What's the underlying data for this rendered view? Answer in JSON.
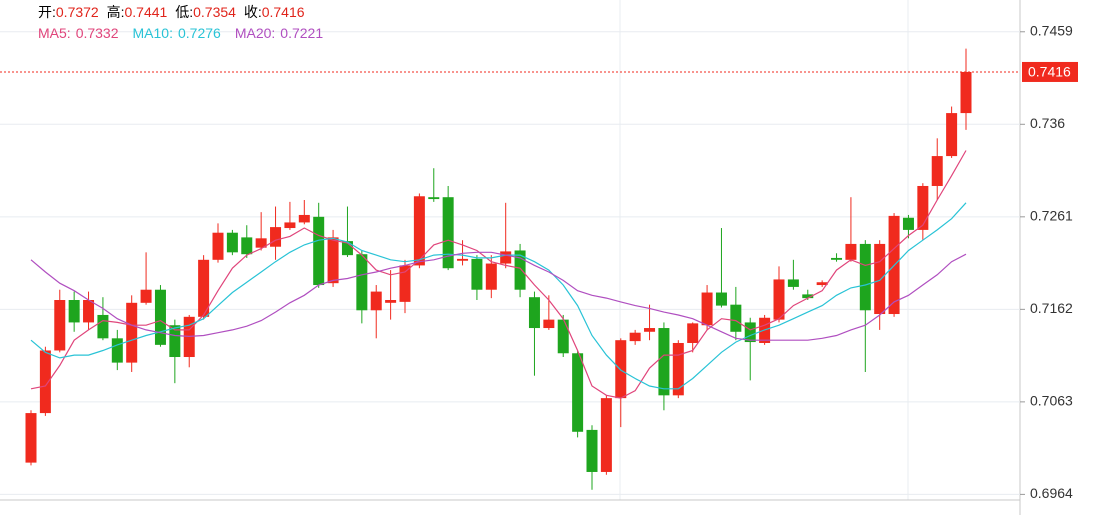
{
  "chart_data": {
    "type": "candlestick",
    "ohlc_labels": [
      "开:",
      "高:",
      "低:",
      "收:"
    ],
    "up_color": "#f02a1e",
    "down_color": "#1ea51e",
    "ylim": [
      0.6958,
      0.7493
    ],
    "yticks": [
      0.6964,
      0.7063,
      0.7162,
      0.7261,
      0.736,
      0.7459
    ],
    "grid": true,
    "open": [
      0.6998,
      0.7051,
      0.7118,
      0.7172,
      0.7148,
      0.7156,
      0.7131,
      0.7105,
      0.7169,
      0.7183,
      0.7145,
      0.7111,
      0.7154,
      0.7215,
      0.7244,
      0.7239,
      0.7228,
      0.7229,
      0.7249,
      0.7255,
      0.7261,
      0.719,
      0.7235,
      0.7221,
      0.7161,
      0.7169,
      0.717,
      0.7209,
      0.7282,
      0.7282,
      0.7214,
      0.7216,
      0.7183,
      0.7211,
      0.7225,
      0.7175,
      0.7142,
      0.7151,
      0.7115,
      0.7033,
      0.6988,
      0.7067,
      0.7128,
      0.7138,
      0.7142,
      0.707,
      0.7126,
      0.7145,
      0.718,
      0.7167,
      0.7148,
      0.7126,
      0.7151,
      0.7194,
      0.7178,
      0.7188,
      0.7217,
      0.7215,
      0.7232,
      0.7157,
      0.7157,
      0.726,
      0.7247,
      0.7294,
      0.7326,
      0.7372
    ],
    "high": [
      0.7054,
      0.7122,
      0.7183,
      0.7181,
      0.7181,
      0.7175,
      0.714,
      0.7177,
      0.7223,
      0.7188,
      0.7151,
      0.7156,
      0.722,
      0.7254,
      0.7247,
      0.7252,
      0.7266,
      0.7272,
      0.7277,
      0.7279,
      0.7276,
      0.7247,
      0.7272,
      0.7225,
      0.7188,
      0.7204,
      0.7215,
      0.7286,
      0.7313,
      0.7294,
      0.7236,
      0.722,
      0.722,
      0.7276,
      0.7232,
      0.7181,
      0.7177,
      0.7156,
      0.7118,
      0.7038,
      0.707,
      0.7131,
      0.714,
      0.7167,
      0.7148,
      0.7129,
      0.7148,
      0.7188,
      0.7249,
      0.7186,
      0.7153,
      0.7156,
      0.7208,
      0.7215,
      0.7183,
      0.7193,
      0.7222,
      0.7282,
      0.7236,
      0.7236,
      0.7265,
      0.7263,
      0.7297,
      0.7345,
      0.7379,
      0.7441
    ],
    "low": [
      0.6995,
      0.7048,
      0.7116,
      0.7138,
      0.714,
      0.7129,
      0.7097,
      0.7095,
      0.7167,
      0.7122,
      0.7083,
      0.71,
      0.7151,
      0.7212,
      0.722,
      0.7217,
      0.7225,
      0.7215,
      0.7247,
      0.7253,
      0.7185,
      0.7186,
      0.7218,
      0.7147,
      0.7131,
      0.7151,
      0.7158,
      0.7206,
      0.7277,
      0.7204,
      0.7209,
      0.7172,
      0.7174,
      0.7206,
      0.7175,
      0.7091,
      0.714,
      0.7111,
      0.7025,
      0.6969,
      0.6985,
      0.7036,
      0.7124,
      0.7129,
      0.7054,
      0.7067,
      0.7116,
      0.714,
      0.7164,
      0.7129,
      0.7086,
      0.7124,
      0.7148,
      0.7183,
      0.7172,
      0.7186,
      0.7213,
      0.7213,
      0.7095,
      0.714,
      0.7154,
      0.7238,
      0.7236,
      0.7279,
      0.7324,
      0.7354
    ],
    "close": [
      0.7051,
      0.7118,
      0.7172,
      0.7148,
      0.7172,
      0.7131,
      0.7105,
      0.7169,
      0.7183,
      0.7124,
      0.7111,
      0.7154,
      0.7215,
      0.7244,
      0.7223,
      0.7221,
      0.7238,
      0.725,
      0.7255,
      0.7263,
      0.7188,
      0.7239,
      0.722,
      0.7161,
      0.7181,
      0.7172,
      0.7209,
      0.7283,
      0.728,
      0.7206,
      0.7216,
      0.7183,
      0.7211,
      0.7224,
      0.7183,
      0.7142,
      0.7151,
      0.7115,
      0.7031,
      0.6988,
      0.7067,
      0.7129,
      0.7137,
      0.7142,
      0.707,
      0.7126,
      0.7147,
      0.718,
      0.7166,
      0.7138,
      0.7127,
      0.7153,
      0.7194,
      0.7186,
      0.7174,
      0.7191,
      0.7215,
      0.7232,
      0.7161,
      0.7232,
      0.7262,
      0.7247,
      0.7294,
      0.7326,
      0.7372,
      0.7416
    ],
    "series": [
      {
        "name": "MA5:",
        "color": "#e0457b",
        "values": [
          0.7077,
          0.708,
          0.7102,
          0.7129,
          0.714,
          0.715,
          0.7148,
          0.7145,
          0.7145,
          0.715,
          0.714,
          0.714,
          0.7156,
          0.7182,
          0.7206,
          0.722,
          0.7227,
          0.7236,
          0.724,
          0.7249,
          0.7241,
          0.7236,
          0.7233,
          0.722,
          0.7204,
          0.7199,
          0.7202,
          0.7215,
          0.7231,
          0.7236,
          0.7231,
          0.7225,
          0.7213,
          0.7209,
          0.7206,
          0.7188,
          0.7172,
          0.7152,
          0.7118,
          0.708,
          0.707,
          0.7067,
          0.7075,
          0.7099,
          0.7113,
          0.7113,
          0.7118,
          0.714,
          0.7152,
          0.715,
          0.714,
          0.7145,
          0.7152,
          0.7166,
          0.7174,
          0.7182,
          0.7204,
          0.7215,
          0.7209,
          0.7213,
          0.7227,
          0.7241,
          0.7252,
          0.7279,
          0.7305,
          0.7332
        ]
      },
      {
        "name": "MA10:",
        "color": "#29c3d6",
        "values": [
          0.7129,
          0.7116,
          0.711,
          0.7113,
          0.7113,
          0.7118,
          0.7124,
          0.7129,
          0.7134,
          0.7138,
          0.7142,
          0.7145,
          0.7152,
          0.7166,
          0.718,
          0.7191,
          0.7202,
          0.7213,
          0.7223,
          0.7231,
          0.7236,
          0.7238,
          0.7234,
          0.7225,
          0.722,
          0.7215,
          0.7213,
          0.7215,
          0.722,
          0.7221,
          0.722,
          0.7217,
          0.7217,
          0.722,
          0.722,
          0.7213,
          0.7204,
          0.7188,
          0.7166,
          0.7134,
          0.7113,
          0.7097,
          0.7088,
          0.708,
          0.7077,
          0.7077,
          0.7088,
          0.7102,
          0.7116,
          0.7127,
          0.7134,
          0.714,
          0.7145,
          0.7152,
          0.7159,
          0.7166,
          0.7177,
          0.7185,
          0.7188,
          0.7193,
          0.7209,
          0.7225,
          0.7236,
          0.7247,
          0.7259,
          0.7276
        ]
      },
      {
        "name": "MA20:",
        "color": "#b04fc0",
        "values": [
          0.7215,
          0.7202,
          0.719,
          0.7182,
          0.7172,
          0.7163,
          0.7152,
          0.7145,
          0.714,
          0.7137,
          0.7134,
          0.7133,
          0.7134,
          0.7137,
          0.714,
          0.7144,
          0.715,
          0.7159,
          0.7169,
          0.7177,
          0.7188,
          0.7193,
          0.7195,
          0.7199,
          0.7202,
          0.7206,
          0.7209,
          0.7213,
          0.7215,
          0.7219,
          0.7222,
          0.7223,
          0.7223,
          0.722,
          0.7217,
          0.7209,
          0.7202,
          0.7193,
          0.7182,
          0.7177,
          0.7174,
          0.717,
          0.7166,
          0.7163,
          0.7159,
          0.7156,
          0.7152,
          0.7145,
          0.7138,
          0.7131,
          0.7129,
          0.7129,
          0.7129,
          0.7129,
          0.7129,
          0.7131,
          0.7134,
          0.714,
          0.7145,
          0.7156,
          0.717,
          0.7177,
          0.7188,
          0.7199,
          0.7213,
          0.7221
        ]
      }
    ]
  }
}
